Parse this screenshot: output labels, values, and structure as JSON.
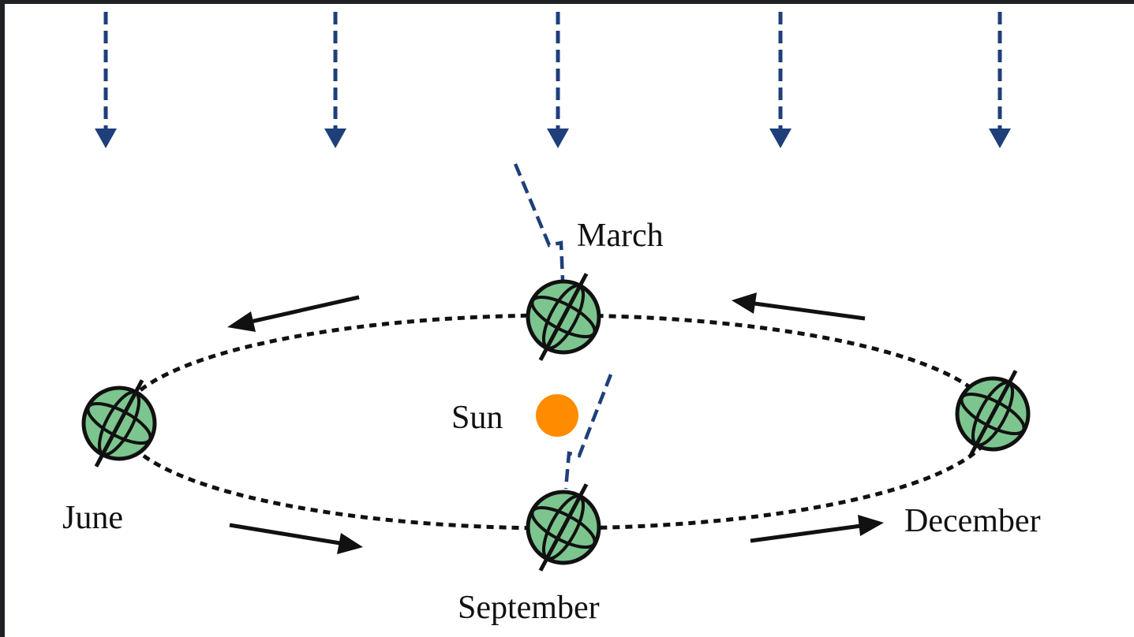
{
  "labels": {
    "march": "March",
    "june": "June",
    "september": "September",
    "december": "December",
    "sun": "Sun"
  },
  "colors": {
    "background": "#ffffff",
    "frame": "#202124",
    "sunlight_arrows": "#1f3f7a",
    "orbit": "#111111",
    "motion_arrows": "#111111",
    "earth_fill": "#7cc58f",
    "sun": "#ff8c00"
  },
  "icons": {
    "earth": "earth-globe-icon",
    "sun": "sun-icon",
    "sunlight": "down-arrow-icon",
    "orbit_direction": "arrow-icon"
  }
}
